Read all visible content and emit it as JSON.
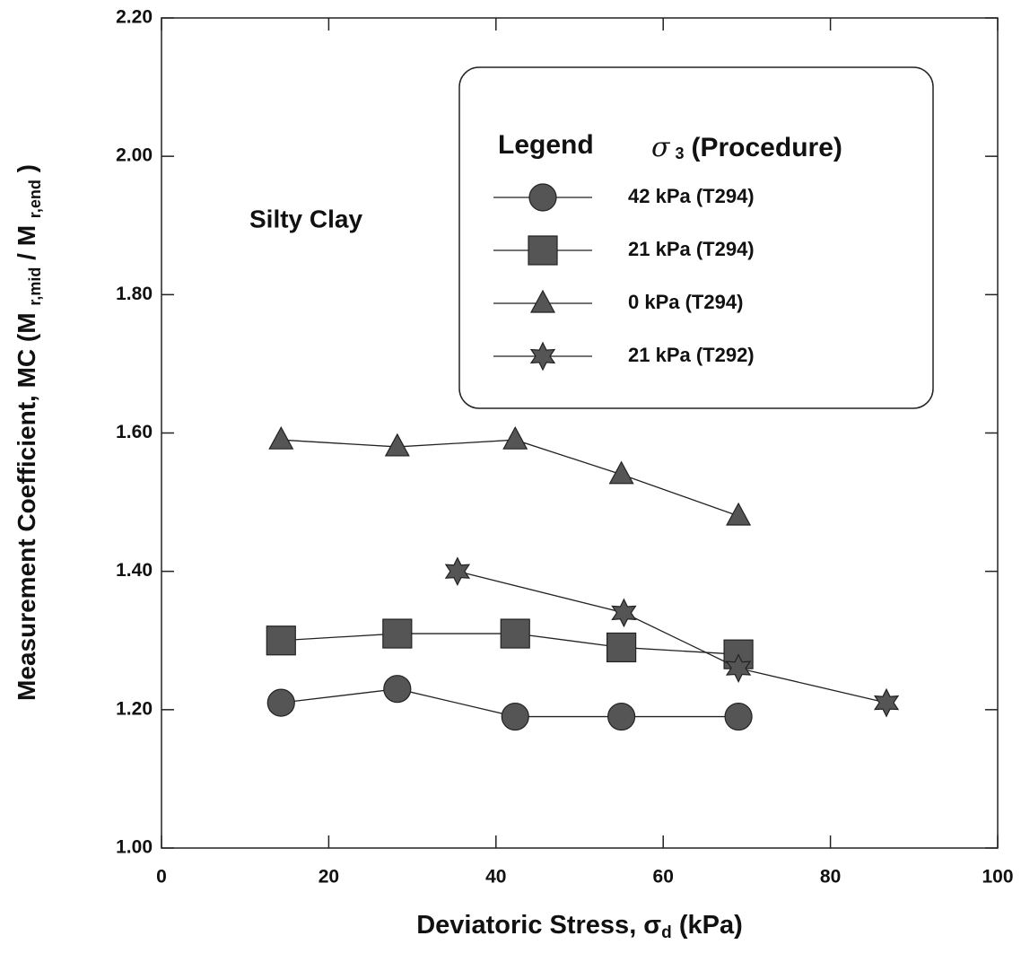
{
  "chart_data": {
    "type": "line",
    "xlabel": [
      "Deviatoric Stress, σ",
      "d",
      " (kPa)"
    ],
    "ylabel": [
      "Measurement Coefficient, MC (M ",
      "r,mid",
      " / M ",
      "r,end",
      " )"
    ],
    "annotation": "Silty Clay",
    "legend_title": [
      "Legend",
      "σ",
      "3",
      "(Procedure)"
    ],
    "xlim": [
      0,
      100
    ],
    "xticks": [
      0,
      20,
      40,
      60,
      80,
      100
    ],
    "ylim": [
      1.0,
      2.2
    ],
    "yticks": [
      {
        "value": 1.0,
        "label": "1.00"
      },
      {
        "value": 1.2,
        "label": "1.20"
      },
      {
        "value": 1.4,
        "label": "1.40"
      },
      {
        "value": 1.6,
        "label": "1.60"
      },
      {
        "value": 1.8,
        "label": "1.80"
      },
      {
        "value": 2.0,
        "label": "2.00"
      },
      {
        "value": 2.2,
        "label": "2.20"
      }
    ],
    "series": [
      {
        "name": "42 kPa (T294)",
        "marker": "circle",
        "color": "#555555",
        "x": [
          14.3,
          28.2,
          42.3,
          55,
          69
        ],
        "values": [
          1.21,
          1.23,
          1.19,
          1.19,
          1.19
        ]
      },
      {
        "name": "21 kPa (T294)",
        "marker": "square",
        "color": "#555555",
        "x": [
          14.3,
          28.2,
          42.3,
          55,
          69
        ],
        "values": [
          1.3,
          1.31,
          1.31,
          1.29,
          1.28
        ]
      },
      {
        "name": "0 kPa  (T294)",
        "marker": "triangle",
        "color": "#555555",
        "x": [
          14.3,
          28.2,
          42.3,
          55,
          69
        ],
        "values": [
          1.59,
          1.58,
          1.59,
          1.54,
          1.48
        ]
      },
      {
        "name": "21 kPa (T292)",
        "marker": "star",
        "color": "#555555",
        "x": [
          35.4,
          55.3,
          69,
          86.7
        ],
        "values": [
          1.4,
          1.34,
          1.26,
          1.21
        ]
      }
    ]
  }
}
